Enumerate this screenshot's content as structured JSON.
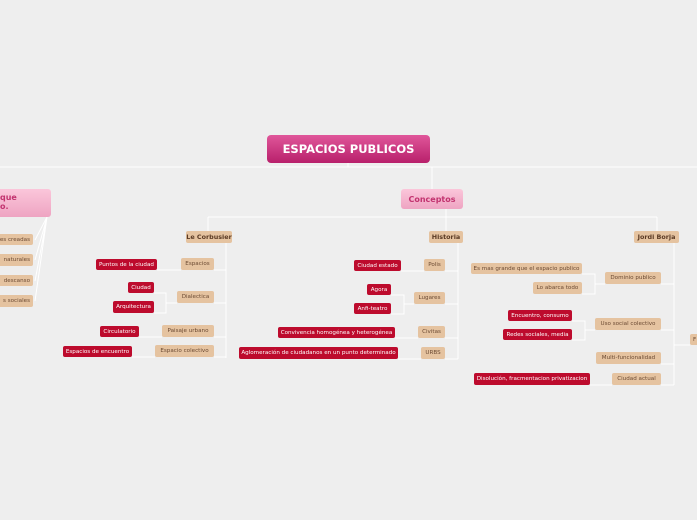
{
  "title": "ESPACIOS PUBLICOS",
  "left_branch": {
    "label_line1": "que",
    "label_line2": "o.",
    "children": [
      "es creadas",
      "naturales",
      "descanso",
      "s sociales"
    ]
  },
  "concepts": {
    "label": "Conceptos",
    "le_corbusier": {
      "label": "Le Corbusier",
      "children": [
        {
          "label": "Espacios",
          "items": [
            "Puntos de la ciudad"
          ]
        },
        {
          "label": "Dialectica",
          "items": [
            "Ciudad",
            "Arquitectura"
          ]
        },
        {
          "label": "Paisaje urbano",
          "items": [
            "Circulatorio"
          ]
        },
        {
          "label": "Espacio colectivo",
          "items": [
            "Espacios de encuentro"
          ]
        }
      ]
    },
    "historia": {
      "label": "Historia",
      "children": [
        {
          "label": "Polis",
          "items": [
            "Ciudad estado"
          ]
        },
        {
          "label": "Lugares",
          "items": [
            "Agora",
            "Anfi-teatro"
          ]
        },
        {
          "label": "Civitas",
          "items": [
            "Convivencia homogénea y heterogénea"
          ]
        },
        {
          "label": "URBS",
          "items": [
            "Aglomeración de ciudadanos en un punto determinado"
          ]
        }
      ]
    },
    "jordi_borja": {
      "label": "Jordi Borja",
      "children": [
        {
          "label": "Dominio publico",
          "items": [
            "Es mas grande que el espacio publico",
            "Lo abarca todo"
          ]
        },
        {
          "label": "Uso social colectivo",
          "items": [
            "Encuentro, consumo",
            "Redes sociales, media"
          ]
        },
        {
          "label": "Multi-funcionalidad",
          "items": []
        },
        {
          "label": "Ciudad actual",
          "items": [
            "Disolución, fracmentacion privatizacion"
          ]
        }
      ]
    }
  },
  "right_partial": "F",
  "colors": {
    "title": "#c42a76",
    "topic": "#e5c3a0",
    "leaf": "#bd0b2d",
    "subtopic": "#f4b3cc"
  }
}
